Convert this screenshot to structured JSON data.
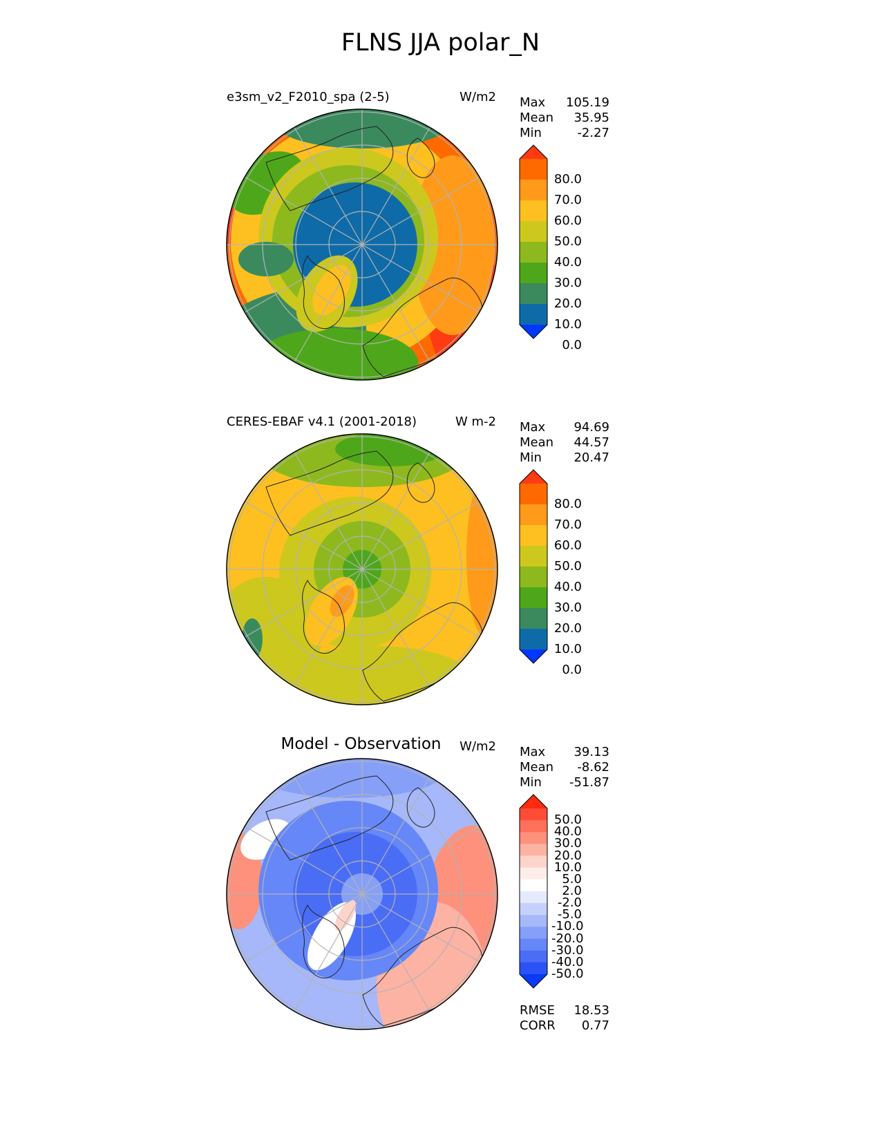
{
  "title": "FLNS JJA polar_N",
  "panels": [
    {
      "name": "test",
      "left_title": "e3sm_v2_F2010_spa (2-5)",
      "center_title": "",
      "units": "W/m2",
      "stats": {
        "max_label": "Max",
        "max": "105.19",
        "mean_label": "Mean",
        "mean": "35.95",
        "min_label": "Min",
        "min": "-2.27"
      },
      "colorbar": {
        "ticks": [
          "80.0",
          "70.0",
          "60.0",
          "50.0",
          "40.0",
          "30.0",
          "20.0",
          "10.0",
          "0.0"
        ],
        "colors": [
          "#ff3b14",
          "#ff6a00",
          "#ff9a1a",
          "#fdc020",
          "#cdc81e",
          "#8db91e",
          "#4ea71a",
          "#3a8a5e",
          "#0e6ba8",
          "#0037ff"
        ]
      }
    },
    {
      "name": "reference",
      "left_title": "CERES-EBAF v4.1 (2001-2018)",
      "center_title": "",
      "units": "W m-2",
      "stats": {
        "max_label": "Max",
        "max": "94.69",
        "mean_label": "Mean",
        "mean": "44.57",
        "min_label": "Min",
        "min": "20.47"
      },
      "colorbar": {
        "ticks": [
          "80.0",
          "70.0",
          "60.0",
          "50.0",
          "40.0",
          "30.0",
          "20.0",
          "10.0",
          "0.0"
        ],
        "colors": [
          "#ff3b14",
          "#ff6a00",
          "#ff9a1a",
          "#fdc020",
          "#cdc81e",
          "#8db91e",
          "#4ea71a",
          "#3a8a5e",
          "#0e6ba8",
          "#0037ff"
        ]
      }
    },
    {
      "name": "difference",
      "left_title": "",
      "center_title": "Model - Observation",
      "units": "W/m2",
      "stats": {
        "max_label": "Max",
        "max": "39.13",
        "mean_label": "Mean",
        "mean": "-8.62",
        "min_label": "Min",
        "min": "-51.87"
      },
      "colorbar": {
        "ticks": [
          "50.0",
          "40.0",
          "30.0",
          "20.0",
          "10.0",
          "5.0",
          "2.0",
          "-2.0",
          "-5.0",
          "-10.0",
          "-20.0",
          "-30.0",
          "-40.0",
          "-50.0"
        ],
        "colors": [
          "#ff2a10",
          "#fe4c36",
          "#fd7059",
          "#fd917c",
          "#fdb3a3",
          "#fdd4cb",
          "#fdeeea",
          "#ffffff",
          "#e5eafd",
          "#c6d1fb",
          "#a6b8f9",
          "#86a0f8",
          "#6687f7",
          "#4a6df6",
          "#2a52f5",
          "#0a3af4"
        ]
      },
      "metrics": {
        "rmse_label": "RMSE",
        "rmse": "18.53",
        "corr_label": "CORR",
        "corr": "0.77"
      }
    }
  ]
}
